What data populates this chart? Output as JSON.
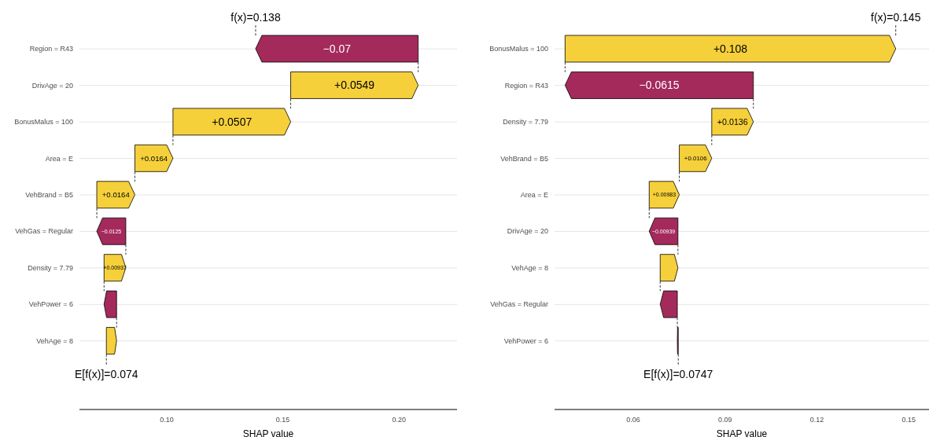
{
  "chart_data": [
    {
      "type": "bar",
      "orientation": "horizontal",
      "xlabel": "SHAP value",
      "grid": "y",
      "categories": [
        "Region = R43",
        "DrivAge = 20",
        "BonusMalus = 100",
        "Area = E",
        "VehBrand = B5",
        "VehGas = Regular",
        "Density = 7.79",
        "VehPower = 6",
        "VehAge = 8"
      ],
      "values": [
        -0.07,
        0.0549,
        0.0507,
        0.0164,
        0.0164,
        -0.0125,
        0.00937,
        -0.0054,
        0.0044
      ],
      "base": [
        0.20827,
        0.15337,
        0.10267,
        0.08627,
        0.06987,
        0.08237,
        0.073,
        0.0784,
        0.074
      ],
      "colors": [
        "#a42a5c",
        "#f5d03b",
        "#f5d03b",
        "#f5d03b",
        "#f5d03b",
        "#a42a5c",
        "#f5d03b",
        "#a42a5c",
        "#f5d03b"
      ],
      "value_labels": [
        "−0.07",
        "+0.0549",
        "+0.0507",
        "+0.0164",
        "+0.0164",
        "−0.0125",
        "+0.00937",
        null,
        null
      ],
      "annotations": [
        "f(x)=0.138",
        "E[f(x)]=0.074"
      ],
      "xlim": [
        0.0624,
        0.225
      ],
      "xticks": [
        {
          "value": 0.1,
          "label": "0.10"
        },
        0.15,
        {
          "value": 0.2,
          "label": "0.20"
        }
      ]
    },
    {
      "type": "bar",
      "orientation": "horizontal",
      "xlabel": "SHAP value",
      "grid": "y",
      "categories": [
        "BonusMalus = 100",
        "Region = R43",
        "Density = 7.79",
        "VehBrand = B5",
        "Area = E",
        "DrivAge = 20",
        "VehAge = 8",
        "VehGas = Regular",
        "VehPower = 6"
      ],
      "values": [
        0.108,
        -0.0615,
        0.0136,
        0.0106,
        0.00983,
        -0.00939,
        0.0058,
        -0.0056,
        -0.0003
      ],
      "base": [
        0.03774,
        0.09924,
        0.08564,
        0.07504,
        0.06521,
        0.0746,
        0.0688,
        0.0744,
        0.0747
      ],
      "colors": [
        "#f5d03b",
        "#a42a5c",
        "#f5d03b",
        "#f5d03b",
        "#f5d03b",
        "#a42a5c",
        "#f5d03b",
        "#a42a5c",
        "#a42a5c"
      ],
      "value_labels": [
        "+0.108",
        "−0.0615",
        "+0.0136",
        "+0.0106",
        "+0.00983",
        "−0.00939",
        null,
        null,
        null
      ],
      "annotations": [
        "f(x)=0.145",
        "E[f(x)]=0.0747"
      ],
      "xlim": [
        0.0343,
        0.1566
      ],
      "xticks": [
        0.06,
        0.09,
        0.12,
        0.15
      ]
    }
  ]
}
